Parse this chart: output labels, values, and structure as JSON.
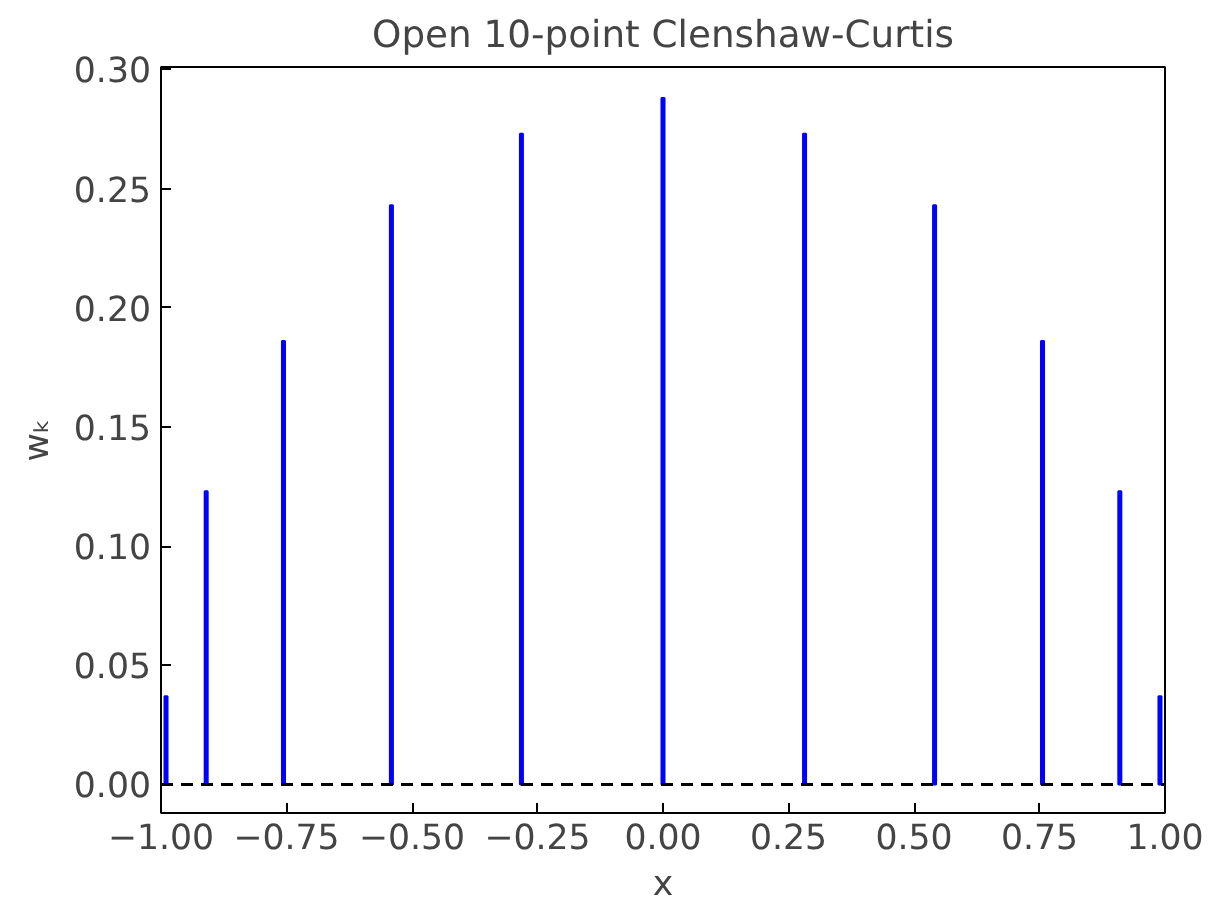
{
  "chart_data": {
    "type": "bar",
    "title": "Open 10-point Clenshaw-Curtis",
    "xlabel": "x",
    "ylabel": "wₖ",
    "x": [
      -0.99,
      -0.91,
      -0.756,
      -0.541,
      -0.282,
      0.0,
      0.282,
      0.541,
      0.756,
      0.91,
      0.99
    ],
    "values": [
      0.037,
      0.123,
      0.186,
      0.243,
      0.273,
      0.288,
      0.273,
      0.243,
      0.186,
      0.123,
      0.037
    ],
    "color": "#0000ff",
    "xlim": [
      -1,
      1
    ],
    "xticks": [
      {
        "value": -1,
        "label": "−1.00"
      },
      {
        "value": -0.75,
        "label": "−0.75"
      },
      {
        "value": -0.5,
        "label": "−0.50"
      },
      {
        "value": -0.25,
        "label": "−0.25"
      },
      {
        "value": 0,
        "label": "0.00"
      },
      {
        "value": 0.25,
        "label": "0.25"
      },
      {
        "value": 0.5,
        "label": "0.50"
      },
      {
        "value": 0.75,
        "label": "0.75"
      },
      {
        "value": 1,
        "label": "1.00"
      }
    ],
    "ylim": [
      -0.012,
      0.301
    ],
    "yticks": [
      {
        "value": 0,
        "label": "0.00"
      },
      {
        "value": 0.05,
        "label": "0.05"
      },
      {
        "value": 0.1,
        "label": "0.10"
      },
      {
        "value": 0.15,
        "label": "0.15"
      },
      {
        "value": 0.2,
        "label": "0.20"
      },
      {
        "value": 0.25,
        "label": "0.25"
      },
      {
        "value": 0.3,
        "label": "0.30"
      }
    ],
    "ref_lines": [
      {
        "axis": "y",
        "value": 0,
        "color": "#000000",
        "line_style": "dashed"
      }
    ],
    "grid": false
  }
}
